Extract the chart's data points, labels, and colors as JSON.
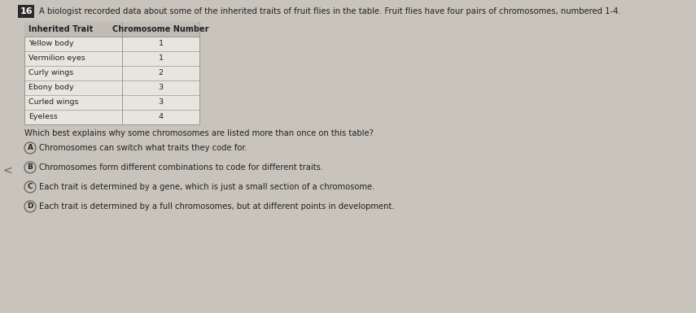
{
  "question_number": "16",
  "intro_text": "A biologist recorded data about some of the inherited traits of fruit flies in the table. Fruit flies have four pairs of chromosomes, numbered 1-4.",
  "table_headers": [
    "Inherited Trait",
    "Chromosome Number"
  ],
  "table_rows": [
    [
      "Yellow body",
      "1"
    ],
    [
      "Vermilion eyes",
      "1"
    ],
    [
      "Curly wings",
      "2"
    ],
    [
      "Ebony body",
      "3"
    ],
    [
      "Curled wings",
      "3"
    ],
    [
      "Eyeless",
      "4"
    ]
  ],
  "question_text": "Which best explains why some chromosomes are listed more than once on this table?",
  "options": [
    {
      "label": "A",
      "text": "Chromosomes can switch what traits they code for."
    },
    {
      "label": "B",
      "text": "Chromosomes form different combinations to code for different traits."
    },
    {
      "label": "C",
      "text": "Each trait is determined by a gene, which is just a small section of a chromosome."
    },
    {
      "label": "D",
      "text": "Each trait is determined by a full chromosomes, but at different points in development."
    }
  ],
  "bg_color": "#c8c4bc",
  "content_bg": "#dedad4",
  "table_bg_light": "#e8e4de",
  "table_header_bg": "#c0bcb4",
  "table_border": "#999990",
  "question_num_bg": "#2a2a2a",
  "question_num_color": "#ffffff",
  "text_color": "#222222",
  "option_circle_color": "#555555",
  "left_bar_color": "#555555",
  "font_size_intro": 7.2,
  "font_size_table_header": 7.0,
  "font_size_table_row": 6.8,
  "font_size_question": 7.2,
  "font_size_option": 7.2,
  "font_size_num": 8.0
}
